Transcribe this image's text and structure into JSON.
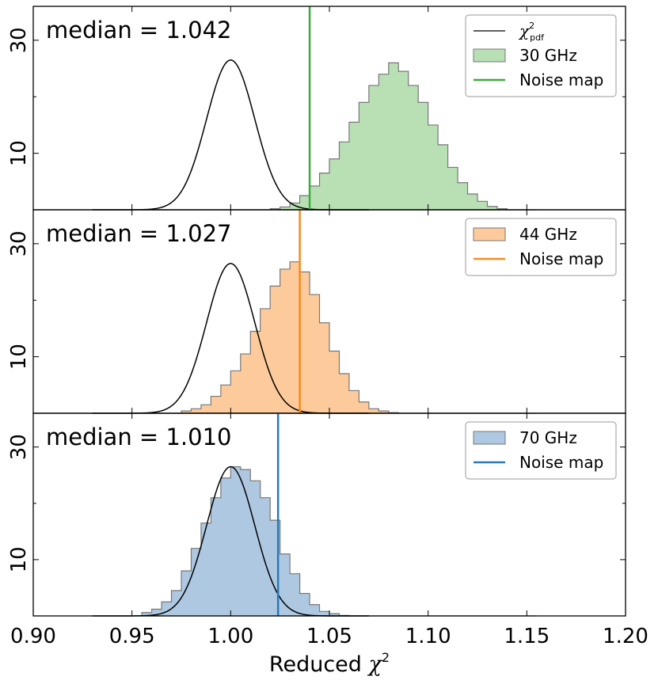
{
  "chart_data": {
    "type": "histogram",
    "xlabel": "Reduced",
    "xlabel_symbol": "χ",
    "xlabel_superscript": "2",
    "xlim": [
      0.9,
      1.2
    ],
    "x_ticks": [
      0.9,
      0.95,
      1.0,
      1.05,
      1.1,
      1.15,
      1.2
    ],
    "x_tick_labels": [
      "0.90",
      "0.95",
      "1.00",
      "1.05",
      "1.10",
      "1.15",
      "1.20"
    ],
    "bin_start": 0.955,
    "bin_width": 0.005,
    "chi2_curve": {
      "mean": 1.0,
      "sigma": 0.0122,
      "peak": 26.5
    },
    "legend_chi2_label": "χ",
    "legend_chi2_super": "2",
    "legend_chi2_sub": "pdf",
    "panels": [
      {
        "median_label": "median = 1.042",
        "hist_label": "30 GHz",
        "noise_label": "Noise map",
        "fill_color": "#b8e0b4",
        "line_color": "#3cab3c",
        "noise_x": 1.04,
        "ylim": [
          0,
          36
        ],
        "y_ticks": [
          10,
          30
        ],
        "y_tick_labels": [
          "10",
          "30"
        ],
        "show_chi2_legend": true,
        "counts": [
          0,
          0,
          0,
          0,
          0,
          0,
          0,
          0,
          0,
          0,
          0,
          0,
          0,
          0.2,
          0.5,
          1.2,
          2.5,
          4.2,
          6.5,
          9.0,
          12.0,
          15.5,
          19.0,
          22.0,
          24.0,
          26.0,
          24.5,
          22.0,
          19.0,
          15.0,
          11.5,
          7.5,
          4.8,
          2.8,
          1.5,
          0.6,
          0.2,
          0,
          0,
          0
        ]
      },
      {
        "median_label": "median = 1.027",
        "hist_label": "44 GHz",
        "noise_label": "Noise map",
        "fill_color": "#fdcb9b",
        "line_color": "#f58a1e",
        "noise_x": 1.035,
        "ylim": [
          0,
          36
        ],
        "y_ticks": [
          10,
          30
        ],
        "y_tick_labels": [
          "10",
          "30"
        ],
        "show_chi2_legend": false,
        "counts": [
          0,
          0,
          0,
          0,
          0.4,
          0.8,
          1.5,
          3.0,
          5.0,
          7.5,
          10.5,
          14.5,
          18.5,
          22.5,
          25.5,
          26.8,
          25.0,
          21.0,
          16.0,
          11.0,
          7.0,
          4.0,
          2.0,
          0.8,
          0.4,
          0.1,
          0,
          0,
          0,
          0,
          0,
          0,
          0,
          0,
          0,
          0,
          0,
          0,
          0,
          0
        ]
      },
      {
        "median_label": "median = 1.010",
        "hist_label": "70 GHz",
        "noise_label": "Noise map",
        "fill_color": "#aec8e2",
        "line_color": "#2a7ab8",
        "noise_x": 1.024,
        "ylim": [
          0,
          36
        ],
        "y_ticks": [
          10,
          30
        ],
        "y_tick_labels": [
          "10",
          "30"
        ],
        "show_chi2_legend": false,
        "counts": [
          0.6,
          1.2,
          2.5,
          4.5,
          8.0,
          12.0,
          16.5,
          21.0,
          24.5,
          26.5,
          26.0,
          24.0,
          21.0,
          17.0,
          11.0,
          7.5,
          4.0,
          2.0,
          0.8,
          0.4,
          0.1,
          0,
          0,
          0,
          0,
          0,
          0,
          0,
          0,
          0,
          0,
          0,
          0,
          0,
          0,
          0,
          0,
          0,
          0,
          0
        ]
      }
    ]
  }
}
